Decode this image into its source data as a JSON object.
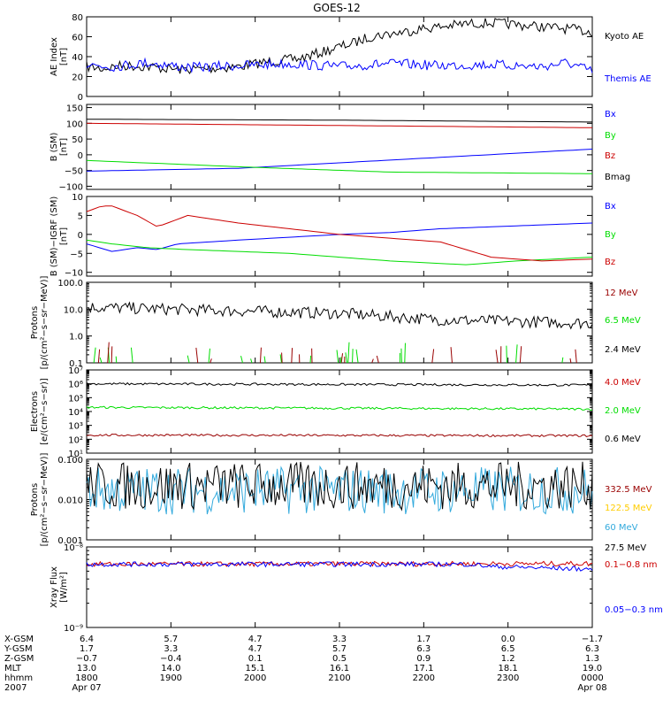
{
  "title": "GOES-12",
  "colors": {
    "black": "#000000",
    "blue": "#0000ff",
    "red": "#cc0000",
    "green": "#00dd00",
    "darkred": "#990000",
    "cyan": "#33aadd",
    "yellow": "#ffcc00"
  },
  "chart_data": [
    {
      "type": "line",
      "ylabel": [
        "AE Index",
        "[nT]"
      ],
      "ylim": [
        0,
        80
      ],
      "yticks": [
        "0",
        "20",
        "40",
        "60",
        "80"
      ],
      "series": [
        {
          "name": "Kyoto AE",
          "color": "black",
          "x": [
            0,
            0.03,
            0.07,
            0.12,
            0.18,
            0.24,
            0.3,
            0.36,
            0.42,
            0.47,
            0.5,
            0.53,
            0.56,
            0.6,
            0.63,
            0.66,
            0.7,
            0.75,
            0.8,
            0.85,
            0.9,
            0.95,
            1.0
          ],
          "y": [
            30,
            28,
            31,
            30,
            27,
            28,
            30,
            35,
            38,
            45,
            50,
            54,
            60,
            63,
            65,
            68,
            70,
            73,
            74,
            72,
            70,
            68,
            65
          ]
        },
        {
          "name": "Themis AE",
          "color": "blue",
          "x": [
            0,
            0.05,
            0.12,
            0.2,
            0.3,
            0.4,
            0.5,
            0.6,
            0.7,
            0.8,
            0.9,
            0.95,
            1.0
          ],
          "y": [
            32,
            30,
            34,
            29,
            31,
            33,
            30,
            33,
            31,
            32,
            30,
            34,
            25
          ]
        }
      ]
    },
    {
      "type": "line",
      "ylabel": [
        "B (SM)",
        "[nT]"
      ],
      "ylim": [
        -110,
        160
      ],
      "yticks": [
        "150",
        "100",
        "50",
        "0",
        "−50",
        "−100"
      ],
      "series": [
        {
          "name": "Bx",
          "color": "blue",
          "x": [
            0,
            0.3,
            1.0
          ],
          "y": [
            -52,
            -43,
            18
          ]
        },
        {
          "name": "By",
          "color": "green",
          "x": [
            0,
            0.3,
            0.6,
            1.0
          ],
          "y": [
            -18,
            -38,
            -55,
            -60
          ]
        },
        {
          "name": "Bz",
          "color": "red",
          "x": [
            0,
            0.5,
            1.0
          ],
          "y": [
            100,
            93,
            86
          ]
        },
        {
          "name": "Bmag",
          "color": "black",
          "x": [
            0,
            0.5,
            1.0
          ],
          "y": [
            113,
            110,
            104
          ]
        }
      ]
    },
    {
      "type": "line",
      "ylabel": [
        "B (SM)−IGRF (SM)",
        "[nT]"
      ],
      "ylim": [
        -11,
        10
      ],
      "yticks": [
        "10",
        "5",
        "0",
        "−5",
        "−10"
      ],
      "series": [
        {
          "name": "Bx",
          "color": "blue",
          "x": [
            0,
            0.05,
            0.1,
            0.14,
            0.18,
            0.3,
            0.5,
            0.6,
            0.7,
            0.8,
            0.9,
            1.0
          ],
          "y": [
            -2.5,
            -4.5,
            -3.5,
            -4,
            -2.5,
            -1.5,
            0,
            0.5,
            1.5,
            2,
            2.5,
            3
          ]
        },
        {
          "name": "By",
          "color": "green",
          "x": [
            0,
            0.05,
            0.12,
            0.2,
            0.3,
            0.4,
            0.5,
            0.6,
            0.75,
            0.85,
            1.0
          ],
          "y": [
            -1.5,
            -2.5,
            -3.5,
            -4,
            -4.5,
            -5,
            -6,
            -7,
            -8,
            -7,
            -6
          ]
        },
        {
          "name": "Bz",
          "color": "red",
          "x": [
            0,
            0.03,
            0.05,
            0.1,
            0.14,
            0.16,
            0.18,
            0.2,
            0.3,
            0.4,
            0.5,
            0.6,
            0.7,
            0.8,
            0.9,
            1.0
          ],
          "y": [
            6,
            7.5,
            7.5,
            5,
            2,
            3,
            4,
            5,
            3,
            1.5,
            0,
            -1,
            -2,
            -6,
            -7,
            -6.5
          ]
        }
      ]
    },
    {
      "type": "line",
      "log": true,
      "ylabel": [
        "Protons",
        "[p/(cm²−s−sr−MeV)]"
      ],
      "ylim": [
        0.1,
        100
      ],
      "yticks": [
        "100.0",
        "10.0",
        "1.0",
        "0.1"
      ],
      "series": [
        {
          "name": "12 MeV",
          "color": "darkred"
        },
        {
          "name": "6.5 MeV",
          "color": "green"
        },
        {
          "name": "2.4 MeV",
          "color": "black",
          "x": [
            0,
            0.25,
            0.5,
            0.7,
            1.0
          ],
          "y": [
            12,
            9,
            7,
            4,
            3
          ]
        }
      ]
    },
    {
      "type": "line",
      "log": true,
      "ylabel": [
        "Electrons",
        "[e/(cm²−s−sr)]"
      ],
      "ylim": [
        10,
        10000000
      ],
      "yticks": [
        "10⁷",
        "10⁶",
        "10⁵",
        "10⁴",
        "10³",
        "10²",
        "10¹"
      ],
      "series": [
        {
          "name": "4.0 MeV",
          "color": "red"
        },
        {
          "name": "2.0 MeV",
          "color": "green",
          "x": [
            0,
            1.0
          ],
          "y": [
            20000,
            15000
          ]
        },
        {
          "name": "0.6 MeV",
          "color": "black",
          "x": [
            0,
            1.0
          ],
          "y": [
            1000000,
            800000
          ]
        },
        {
          "name": "",
          "color": "darkred",
          "x": [
            0,
            1.0
          ],
          "y": [
            200,
            180
          ]
        }
      ]
    },
    {
      "type": "line",
      "log": true,
      "ylabel": [
        "Protons",
        "[p/(cm²−s−sr−MeV)]"
      ],
      "ylim": [
        0.001,
        0.1
      ],
      "yticks": [
        "0.100",
        "0.010",
        "0.001"
      ],
      "series": [
        {
          "name": "332.5 MeV",
          "color": "darkred"
        },
        {
          "name": "122.5 MeV",
          "color": "yellow"
        },
        {
          "name": "60 MeV",
          "color": "cyan",
          "x": [
            0,
            1.0
          ],
          "y": [
            0.017,
            0.017
          ]
        },
        {
          "name": "27.5 MeV",
          "color": "black",
          "x": [
            0,
            1.0
          ],
          "y": [
            0.022,
            0.022
          ]
        }
      ]
    },
    {
      "type": "line",
      "log": true,
      "ylabel": [
        "Xray Flux",
        "[W/m²]"
      ],
      "ylim": [
        1e-09,
        1e-08
      ],
      "yticks": [
        "10⁻⁸",
        "10⁻⁹"
      ],
      "series": [
        {
          "name": "0.1−0.8 nm",
          "color": "red",
          "x": [
            0,
            1.0
          ],
          "y": [
            6.1e-09,
            6.2e-09
          ]
        },
        {
          "name": "0.05−0.3 nm",
          "color": "blue",
          "x": [
            0,
            0.76,
            0.8,
            0.9,
            1.0
          ],
          "y": [
            6.1e-09,
            6.1e-09,
            5.7e-09,
            5.5e-09,
            5.3e-09
          ]
        }
      ]
    }
  ],
  "ephemeris": {
    "labels": [
      "X-GSM",
      "Y-GSM",
      "Z-GSM",
      "MLT",
      "hhmm",
      "2007"
    ],
    "columns": [
      [
        "6.4",
        "1.7",
        "−0.7",
        "13.0",
        "1800",
        "Apr 07"
      ],
      [
        "5.7",
        "3.3",
        "−0.4",
        "14.0",
        "1900",
        ""
      ],
      [
        "4.7",
        "4.7",
        "0.1",
        "15.1",
        "2000",
        ""
      ],
      [
        "3.3",
        "5.7",
        "0.5",
        "16.1",
        "2100",
        ""
      ],
      [
        "1.7",
        "6.3",
        "0.9",
        "17.1",
        "2200",
        ""
      ],
      [
        "0.0",
        "6.5",
        "1.2",
        "18.1",
        "2300",
        ""
      ],
      [
        "−1.7",
        "6.3",
        "1.3",
        "19.0",
        "0000",
        "Apr 08"
      ]
    ]
  }
}
